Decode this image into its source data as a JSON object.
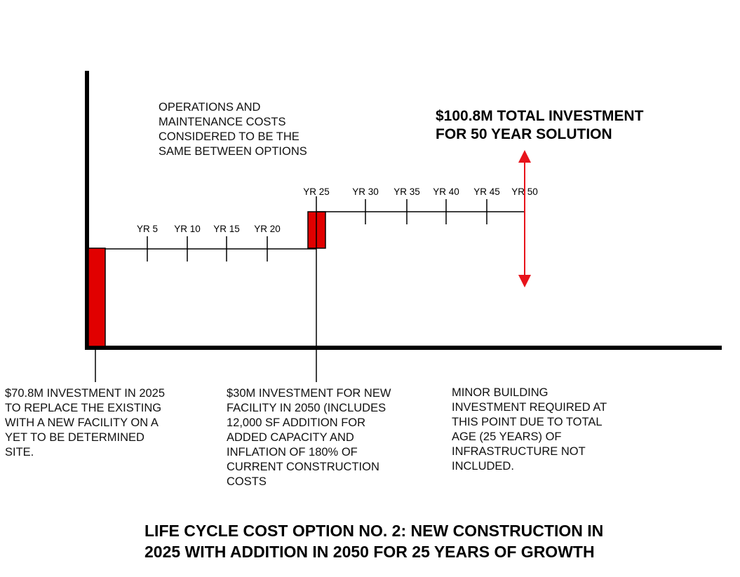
{
  "title_lines": [
    "LIFE CYCLE COST OPTION NO. 2: NEW CONSTRUCTION IN",
    "2025 WITH ADDITION IN 2050 FOR 25 YEARS OF GROWTH"
  ],
  "total_investment_lines": [
    "$100.8M TOTAL INVESTMENT",
    "FOR 50 YEAR SOLUTION"
  ],
  "om_note_lines": [
    "OPERATIONS AND",
    "MAINTENANCE COSTS",
    "CONSIDERED TO BE THE",
    "SAME BETWEEN OPTIONS"
  ],
  "investment_2025_lines": [
    "$70.8M INVESTMENT IN 2025",
    "TO REPLACE THE EXISTING",
    "WITH A NEW FACILITY ON A",
    "YET TO BE DETERMINED",
    "SITE."
  ],
  "investment_2050_lines": [
    "$30M INVESTMENT FOR NEW",
    "FACILITY IN 2050 (INCLUDES",
    "12,000 SF ADDITION FOR",
    "ADDED CAPACITY AND",
    "INFLATION OF 180% OF",
    "CURRENT CONSTRUCTION",
    "COSTS"
  ],
  "minor_investment_lines": [
    "MINOR BUILDING",
    "INVESTMENT REQUIRED AT",
    "THIS POINT DUE TO TOTAL",
    "AGE (25 YEARS) OF",
    "INFRASTRUCTURE NOT",
    "INCLUDED."
  ],
  "year_labels": [
    "YR 5",
    "YR 10",
    "YR 15",
    "YR 20",
    "YR 25",
    "YR 30",
    "YR 35",
    "YR 40",
    "YR 45",
    "YR 50"
  ],
  "investment_events": [
    {
      "year": 0,
      "amount_millions": 70.8
    },
    {
      "year": 25,
      "amount_millions": 30
    }
  ],
  "total_investment_millions": 100.8,
  "horizon_years": 50,
  "colors": {
    "investment_bar": "#e10000",
    "arrow": "#e8131b",
    "line": "#000000"
  }
}
